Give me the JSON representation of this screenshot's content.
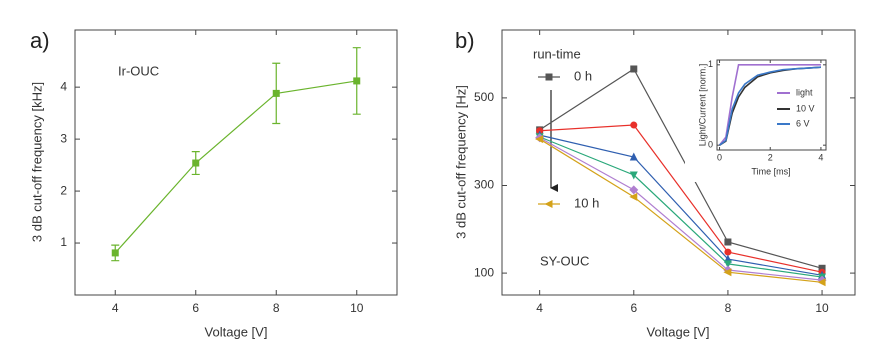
{
  "chart_data": [
    {
      "type": "line",
      "panel_label": "a)",
      "annotation": "Ir-OUC",
      "x_label": "Voltage [V]",
      "y_label": "3 dB cut-off frequency [kHz]",
      "x": [
        4,
        6,
        8,
        10
      ],
      "series": [
        {
          "color": "#6ab42d",
          "marker": "square",
          "values": [
            0.81,
            2.54,
            3.88,
            4.12
          ],
          "errors": [
            0.15,
            0.22,
            0.58,
            0.64
          ]
        }
      ],
      "xlim": [
        3,
        11
      ],
      "xticks": [
        4,
        6,
        8,
        10
      ],
      "ylim": [
        0,
        5.1
      ],
      "yticks": [
        1,
        2,
        3,
        4
      ]
    },
    {
      "type": "line",
      "panel_label": "b)",
      "annotation": "SY-OUC",
      "legend_title": "run-time",
      "x_label": "Voltage [V]",
      "y_label": "3 dB cut-off frequency [Hz]",
      "x": [
        4,
        6,
        8,
        10
      ],
      "series": [
        {
          "name": "0 h",
          "color": "#555555",
          "marker": "square",
          "values": [
            427,
            566,
            171,
            111
          ]
        },
        {
          "color": "#e8302a",
          "marker": "circle",
          "values": [
            425,
            438,
            148,
            102
          ]
        },
        {
          "color": "#2f5fb0",
          "marker": "triangle-up",
          "values": [
            415,
            365,
            132,
            95
          ]
        },
        {
          "color": "#2aa87a",
          "marker": "triangle-down",
          "values": [
            411,
            324,
            121,
            91
          ]
        },
        {
          "color": "#b07fd0",
          "marker": "diamond",
          "values": [
            409,
            290,
            107,
            84
          ]
        },
        {
          "name": "10 h",
          "color": "#d4a21a",
          "marker": "triangle-left",
          "values": [
            406,
            274,
            102,
            79
          ]
        }
      ],
      "xlim": [
        3.2,
        10.7
      ],
      "xticks": [
        4,
        6,
        8,
        10
      ],
      "ylim": [
        50,
        655
      ],
      "yticks": [
        100,
        300,
        500
      ]
    },
    {
      "type": "line",
      "x_label": "Time [ms]",
      "y_label": "Light/Current [norm.]",
      "x": [
        0,
        0.25,
        0.5,
        0.75,
        1,
        1.5,
        2,
        2.5,
        3,
        3.5,
        4
      ],
      "series": [
        {
          "name": "light",
          "color": "#a070d0",
          "values": [
            0,
            0.1,
            0.6,
            1,
            1,
            1,
            1,
            1,
            1,
            1,
            1
          ]
        },
        {
          "name": "10 V",
          "color": "#333333",
          "values": [
            0,
            0.05,
            0.4,
            0.6,
            0.72,
            0.85,
            0.9,
            0.93,
            0.95,
            0.96,
            0.97
          ]
        },
        {
          "name": "6 V",
          "color": "#3a78c8",
          "values": [
            0,
            0.06,
            0.45,
            0.65,
            0.76,
            0.87,
            0.91,
            0.94,
            0.95,
            0.96,
            0.97
          ]
        }
      ],
      "xlim": [
        -0.1,
        4.2
      ],
      "xticks": [
        0,
        2,
        4
      ],
      "ylim": [
        -0.06,
        1.06
      ],
      "yticks": [
        0,
        1
      ]
    }
  ]
}
